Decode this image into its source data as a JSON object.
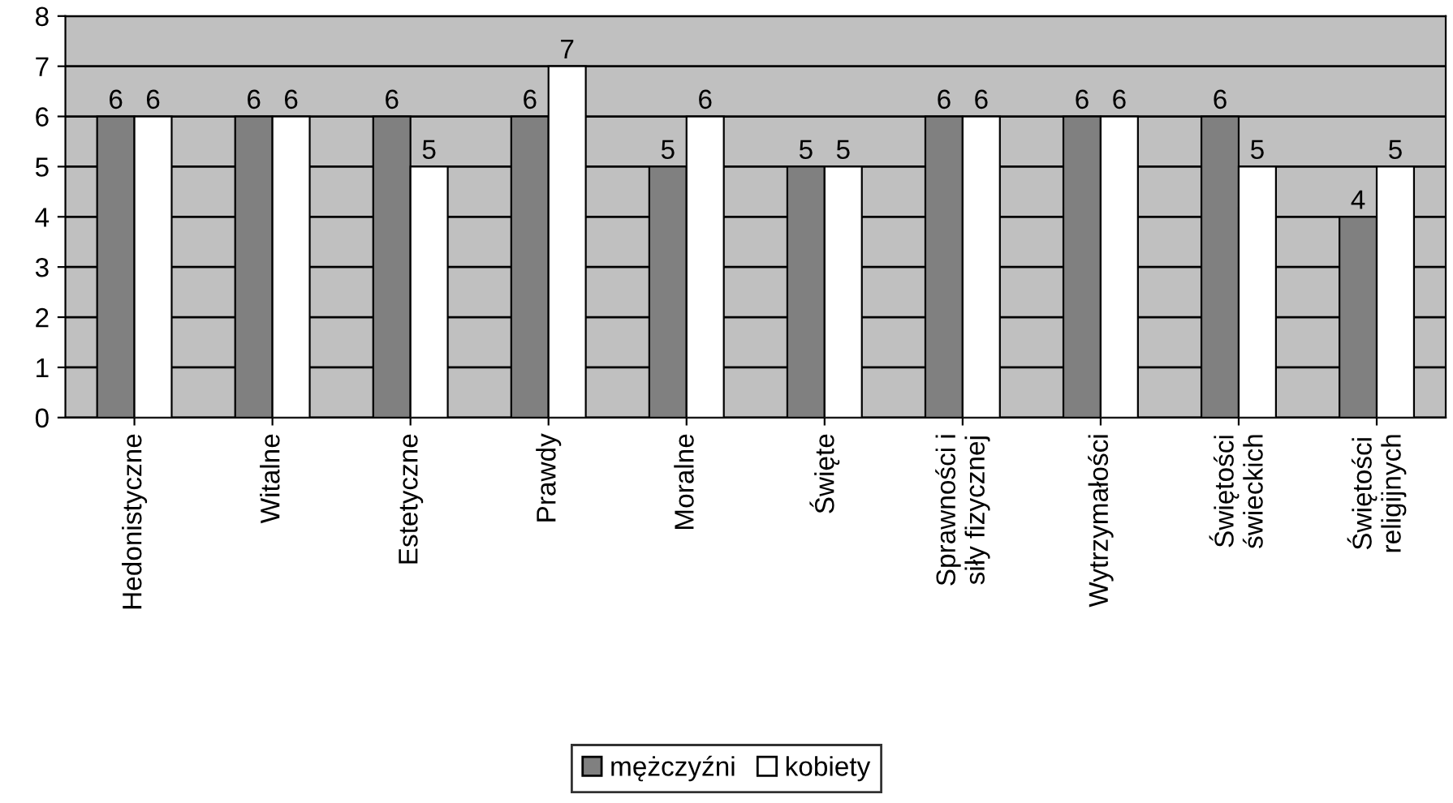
{
  "chart_data": {
    "type": "bar",
    "categories": [
      "Hedonistyczne",
      "Witalne",
      "Estetyczne",
      "Prawdy",
      "Moralne",
      "Święte",
      "Sprawności i\nsiły fizycznej",
      "Wytrzymałości",
      "Świętości\nświeckich",
      "Świętości\nreligijnych"
    ],
    "series": [
      {
        "name": "mężczyźni",
        "color": "#808080",
        "values": [
          6,
          6,
          6,
          6,
          5,
          5,
          6,
          6,
          6,
          4
        ]
      },
      {
        "name": "kobiety",
        "color": "#ffffff",
        "values": [
          6,
          6,
          5,
          7,
          6,
          5,
          6,
          6,
          5,
          5
        ]
      }
    ],
    "ylim": [
      0,
      8
    ],
    "yticks": [
      0,
      1,
      2,
      3,
      4,
      5,
      6,
      7,
      8
    ],
    "grid": "y",
    "legend": "bottom",
    "data_labels": true
  }
}
